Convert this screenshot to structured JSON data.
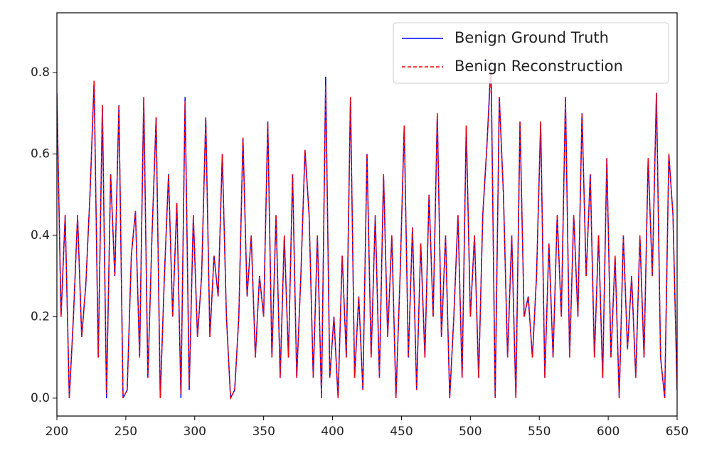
{
  "chart_data": {
    "type": "line",
    "x": [
      200,
      203,
      206,
      209,
      212,
      215,
      218,
      221,
      224,
      227,
      230,
      233,
      236,
      239,
      242,
      245,
      248,
      251,
      254,
      257,
      260,
      263,
      266,
      269,
      272,
      275,
      278,
      281,
      284,
      287,
      290,
      293,
      296,
      299,
      302,
      305,
      308,
      311,
      314,
      317,
      320,
      323,
      326,
      329,
      332,
      335,
      338,
      341,
      344,
      347,
      350,
      353,
      356,
      359,
      362,
      365,
      368,
      371,
      374,
      377,
      380,
      383,
      386,
      389,
      392,
      395,
      398,
      401,
      404,
      407,
      410,
      413,
      416,
      419,
      422,
      425,
      428,
      431,
      434,
      437,
      440,
      443,
      446,
      449,
      452,
      455,
      458,
      461,
      464,
      467,
      470,
      473,
      476,
      479,
      482,
      485,
      488,
      491,
      494,
      497,
      500,
      503,
      506,
      509,
      512,
      515,
      518,
      521,
      524,
      527,
      530,
      533,
      536,
      539,
      542,
      545,
      548,
      551,
      554,
      557,
      560,
      563,
      566,
      569,
      572,
      575,
      578,
      581,
      584,
      587,
      590,
      593,
      596,
      599,
      602,
      605,
      608,
      611,
      614,
      617,
      620,
      623,
      626,
      629,
      632,
      635,
      638,
      641,
      644,
      647,
      650
    ],
    "series": [
      {
        "name": "Benign Ground Truth",
        "color": "#0000ff",
        "dashed": false,
        "values": [
          0.75,
          0.2,
          0.45,
          0.0,
          0.2,
          0.45,
          0.15,
          0.28,
          0.5,
          0.78,
          0.1,
          0.72,
          0.0,
          0.55,
          0.3,
          0.72,
          0.0,
          0.02,
          0.35,
          0.46,
          0.1,
          0.74,
          0.05,
          0.4,
          0.69,
          0.0,
          0.3,
          0.55,
          0.2,
          0.48,
          0.0,
          0.74,
          0.02,
          0.45,
          0.15,
          0.3,
          0.69,
          0.15,
          0.35,
          0.25,
          0.6,
          0.2,
          0.0,
          0.02,
          0.2,
          0.64,
          0.25,
          0.4,
          0.1,
          0.3,
          0.2,
          0.68,
          0.1,
          0.45,
          0.05,
          0.4,
          0.1,
          0.55,
          0.05,
          0.3,
          0.61,
          0.45,
          0.05,
          0.4,
          0.0,
          0.79,
          0.05,
          0.2,
          0.0,
          0.35,
          0.1,
          0.74,
          0.05,
          0.25,
          0.02,
          0.6,
          0.1,
          0.45,
          0.05,
          0.55,
          0.15,
          0.4,
          0.0,
          0.3,
          0.67,
          0.1,
          0.42,
          0.02,
          0.38,
          0.1,
          0.5,
          0.2,
          0.7,
          0.15,
          0.4,
          0.0,
          0.2,
          0.45,
          0.05,
          0.67,
          0.2,
          0.4,
          0.05,
          0.45,
          0.62,
          0.83,
          0.0,
          0.74,
          0.5,
          0.1,
          0.4,
          0.0,
          0.68,
          0.2,
          0.25,
          0.1,
          0.3,
          0.68,
          0.05,
          0.38,
          0.1,
          0.45,
          0.2,
          0.74,
          0.1,
          0.45,
          0.2,
          0.7,
          0.3,
          0.55,
          0.1,
          0.4,
          0.05,
          0.59,
          0.1,
          0.35,
          0.0,
          0.4,
          0.12,
          0.3,
          0.05,
          0.4,
          0.1,
          0.59,
          0.3,
          0.75,
          0.1,
          0.0,
          0.6,
          0.45,
          0.02
        ]
      },
      {
        "name": "Benign Reconstruction",
        "color": "#ff0000",
        "dashed": true,
        "values": [
          0.74,
          0.2,
          0.45,
          0.0,
          0.2,
          0.45,
          0.15,
          0.28,
          0.5,
          0.78,
          0.1,
          0.72,
          0.01,
          0.55,
          0.3,
          0.72,
          0.0,
          0.02,
          0.35,
          0.46,
          0.1,
          0.74,
          0.05,
          0.4,
          0.69,
          0.0,
          0.3,
          0.55,
          0.2,
          0.48,
          0.01,
          0.73,
          0.03,
          0.45,
          0.15,
          0.3,
          0.69,
          0.15,
          0.35,
          0.25,
          0.6,
          0.2,
          0.0,
          0.02,
          0.2,
          0.64,
          0.25,
          0.4,
          0.1,
          0.3,
          0.2,
          0.68,
          0.1,
          0.45,
          0.05,
          0.4,
          0.1,
          0.55,
          0.05,
          0.3,
          0.61,
          0.45,
          0.05,
          0.4,
          0.0,
          0.77,
          0.05,
          0.2,
          0.0,
          0.35,
          0.1,
          0.74,
          0.05,
          0.25,
          0.02,
          0.6,
          0.1,
          0.45,
          0.05,
          0.55,
          0.15,
          0.4,
          0.0,
          0.3,
          0.67,
          0.1,
          0.42,
          0.02,
          0.38,
          0.1,
          0.5,
          0.2,
          0.7,
          0.15,
          0.4,
          0.0,
          0.2,
          0.45,
          0.05,
          0.67,
          0.2,
          0.4,
          0.05,
          0.45,
          0.62,
          0.81,
          0.0,
          0.74,
          0.5,
          0.1,
          0.4,
          0.0,
          0.68,
          0.2,
          0.25,
          0.1,
          0.3,
          0.68,
          0.05,
          0.38,
          0.1,
          0.45,
          0.2,
          0.74,
          0.1,
          0.45,
          0.2,
          0.7,
          0.3,
          0.55,
          0.1,
          0.4,
          0.05,
          0.59,
          0.1,
          0.35,
          0.0,
          0.4,
          0.12,
          0.3,
          0.05,
          0.4,
          0.1,
          0.59,
          0.3,
          0.75,
          0.1,
          0.0,
          0.6,
          0.45,
          0.02
        ]
      }
    ],
    "xlim": [
      200,
      650
    ],
    "xticks": [
      200,
      250,
      300,
      350,
      400,
      450,
      500,
      550,
      600,
      650
    ],
    "ylim": [
      -0.044,
      0.947
    ],
    "yticks": [
      {
        "value": 0,
        "label": "0.0"
      },
      0.2,
      0.4,
      0.6,
      0.8
    ],
    "grid": false,
    "legend": "upper right"
  }
}
